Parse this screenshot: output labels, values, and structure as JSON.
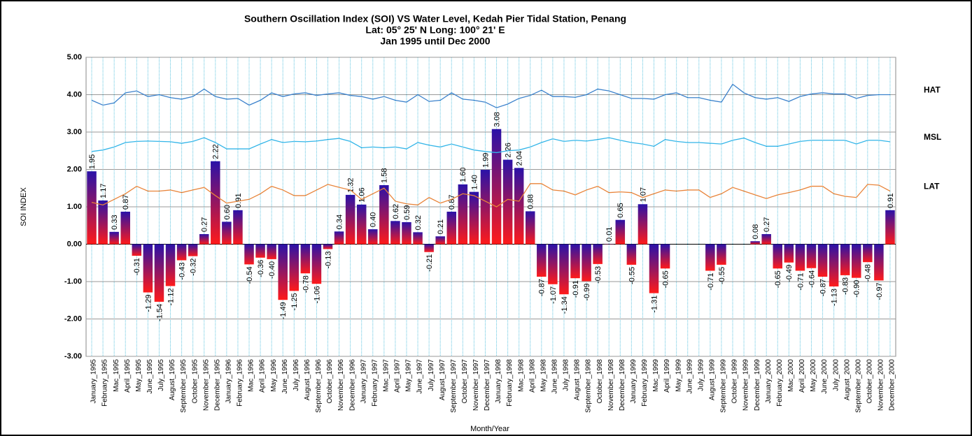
{
  "chart_data": {
    "type": "bar",
    "title": "Southern Oscillation Index (SOI) VS Water Level, Kedah Pier Tidal  Station, Penang",
    "subtitle": [
      "Lat: 05° 25' N Long:  100° 21' E",
      "Jan 1995  until Dec 2000"
    ],
    "y_label": "SOI INDEX",
    "x_label": "Month/Year",
    "categories": [
      "January_1995",
      "February_1995",
      "Mac_1995",
      "April_1995",
      "May_1995",
      "June_1995",
      "July_1995",
      "August_1995",
      "September_1995",
      "October_1995",
      "November_1995",
      "December_1995",
      "January_1996",
      "February_1996",
      "Mac_1996",
      "April_1996",
      "May_1996",
      "June_1996",
      "July_1996",
      "August_1996",
      "September_1996",
      "October_1996",
      "November_1996",
      "December_1996",
      "January_1997",
      "February_1997",
      "Mac_1997",
      "April_1997",
      "May_1997",
      "June_1997",
      "July_1997",
      "August_1997",
      "September_1997",
      "October_1997",
      "November_1997",
      "December_1997",
      "January_1998",
      "February_1998",
      "Mac_1998",
      "April_1998",
      "May_1998",
      "June_1998",
      "July_1998",
      "August_1998",
      "September_1998",
      "October_1998",
      "November_1998",
      "December_1998",
      "January_1999",
      "February_1999",
      "Mac_1999",
      "April_1999",
      "May_1999",
      "June_1999",
      "July_1999",
      "August_1999",
      "September_1999",
      "October_1999",
      "November_1999",
      "December_1999",
      "January_2000",
      "February_2000",
      "Mac_2000",
      "April_2000",
      "May_2000",
      "June_2000",
      "July_2000",
      "August_2000",
      "September_2000",
      "October_2000",
      "November_2000",
      "December_2000"
    ],
    "values": [
      1.95,
      1.17,
      0.33,
      0.87,
      -0.31,
      -1.29,
      -1.54,
      -1.12,
      -0.43,
      -0.32,
      0.27,
      2.22,
      0.6,
      0.91,
      -0.54,
      -0.36,
      -0.4,
      -1.49,
      -1.25,
      -0.78,
      -1.06,
      -0.13,
      0.34,
      1.32,
      1.06,
      0.4,
      1.58,
      0.62,
      0.59,
      0.32,
      -0.21,
      0.21,
      0.87,
      1.6,
      1.4,
      1.99,
      3.08,
      2.26,
      2.04,
      0.88,
      -0.87,
      -1.07,
      -1.34,
      -0.91,
      -0.99,
      -0.53,
      0.01,
      0.65,
      -0.55,
      1.07,
      -1.31,
      -0.65,
      null,
      null,
      null,
      -0.71,
      -0.55,
      null,
      null,
      0.08,
      0.27,
      -0.65,
      -0.49,
      -0.71,
      -0.64,
      -0.87,
      -1.13,
      -0.83,
      -0.9,
      -0.48,
      -0.97,
      0.91
    ],
    "value_labels": [
      "1.95",
      "1.17",
      "0.33",
      "0.87",
      "-0.31",
      "-1.29",
      "-1.54",
      "-1.12",
      "-0.43",
      "-0.32",
      "0.27",
      "2.22",
      "0.60",
      "0.91",
      "-0.54",
      "-0.36",
      "-0.40",
      "-1.49",
      "-1.25",
      "-0.78",
      "-1.06",
      "-0.13",
      "0.34",
      "1.32",
      "1.06",
      "0.40",
      "1.58",
      "0.62",
      "0.59",
      "0.32",
      "-0.21",
      "0.21",
      "0.87",
      "1.60",
      "1.40",
      "1.99",
      "3.08",
      "2.26",
      "2.04",
      "0.88",
      "-0.87",
      "-1.07",
      "-1.34",
      "-0.91",
      "-0.99",
      "-0.53",
      "0.01",
      "0.65",
      "-0.55",
      "1.07",
      "-1.31",
      "-0.65",
      null,
      null,
      null,
      "-0.71",
      "-0.55",
      null,
      null,
      "0.08",
      "0.27",
      "-0.65",
      "-0.49",
      "-0.71",
      "-0.64",
      "-0.87",
      "-1.13",
      "-0.83",
      "-0.90",
      "-0.48",
      "-0.97",
      "0.91"
    ],
    "bar_colors": [
      "#2a12a8",
      "#ff1a1a"
    ],
    "series": [
      {
        "name": "HAT",
        "type": "line",
        "color": "#3c82cc",
        "values": [
          3.85,
          3.72,
          3.78,
          4.05,
          4.1,
          3.95,
          4.0,
          3.92,
          3.88,
          3.95,
          4.15,
          3.95,
          3.88,
          3.9,
          3.72,
          3.85,
          4.05,
          3.95,
          4.02,
          4.05,
          3.98,
          4.02,
          4.05,
          3.98,
          3.95,
          3.88,
          3.95,
          3.85,
          3.8,
          4.0,
          3.82,
          3.85,
          4.05,
          3.88,
          3.85,
          3.8,
          3.65,
          3.75,
          3.9,
          3.98,
          4.12,
          3.95,
          3.95,
          3.93,
          4.0,
          4.15,
          4.1,
          4.0,
          3.9,
          3.9,
          3.88,
          4.0,
          4.05,
          3.92,
          3.92,
          3.85,
          3.8,
          4.28,
          4.05,
          3.92,
          3.88,
          3.92,
          3.82,
          3.95,
          4.02,
          4.05,
          4.02,
          4.02,
          3.9,
          3.98,
          4.0,
          4.0
        ]
      },
      {
        "name": "MSL",
        "type": "line",
        "color": "#33b5e8",
        "values": [
          2.48,
          2.52,
          2.6,
          2.72,
          2.75,
          2.76,
          2.75,
          2.74,
          2.7,
          2.75,
          2.85,
          2.72,
          2.55,
          2.55,
          2.55,
          2.68,
          2.8,
          2.72,
          2.75,
          2.74,
          2.76,
          2.8,
          2.83,
          2.75,
          2.58,
          2.6,
          2.58,
          2.6,
          2.55,
          2.72,
          2.65,
          2.6,
          2.68,
          2.6,
          2.52,
          2.48,
          2.45,
          2.5,
          2.52,
          2.6,
          2.72,
          2.82,
          2.75,
          2.78,
          2.76,
          2.8,
          2.85,
          2.78,
          2.72,
          2.68,
          2.62,
          2.8,
          2.75,
          2.72,
          2.72,
          2.7,
          2.68,
          2.78,
          2.84,
          2.72,
          2.62,
          2.62,
          2.68,
          2.75,
          2.78,
          2.78,
          2.78,
          2.78,
          2.68,
          2.78,
          2.78,
          2.74
        ]
      },
      {
        "name": "LAT",
        "type": "line",
        "color": "#e8843a",
        "values": [
          1.12,
          1.05,
          1.2,
          1.35,
          1.55,
          1.42,
          1.42,
          1.45,
          1.38,
          1.45,
          1.52,
          1.3,
          1.1,
          1.15,
          1.2,
          1.35,
          1.55,
          1.45,
          1.3,
          1.3,
          1.45,
          1.6,
          1.52,
          1.45,
          1.2,
          1.35,
          1.5,
          1.15,
          1.08,
          1.05,
          1.25,
          1.1,
          1.2,
          1.35,
          1.3,
          1.15,
          1.0,
          1.2,
          1.15,
          1.62,
          1.62,
          1.45,
          1.42,
          1.32,
          1.45,
          1.55,
          1.38,
          1.4,
          1.38,
          1.25,
          1.35,
          1.45,
          1.42,
          1.45,
          1.45,
          1.25,
          1.35,
          1.52,
          1.42,
          1.32,
          1.22,
          1.32,
          1.38,
          1.45,
          1.55,
          1.55,
          1.35,
          1.28,
          1.25,
          1.6,
          1.58,
          1.42
        ]
      }
    ],
    "ylim": [
      -3,
      5
    ],
    "yticks": [
      {
        "value": -3,
        "label": "-3.00"
      },
      {
        "value": -2,
        "label": "-2.00"
      },
      {
        "value": -1,
        "label": "-1.00"
      },
      {
        "value": 0,
        "label": "0.00"
      },
      {
        "value": 1,
        "label": "1.00"
      },
      {
        "value": 2,
        "label": "2.00"
      },
      {
        "value": 3,
        "label": "3.00"
      },
      {
        "value": 4,
        "label": "4.00"
      },
      {
        "value": 5,
        "label": "5.00"
      }
    ],
    "grid": true
  }
}
